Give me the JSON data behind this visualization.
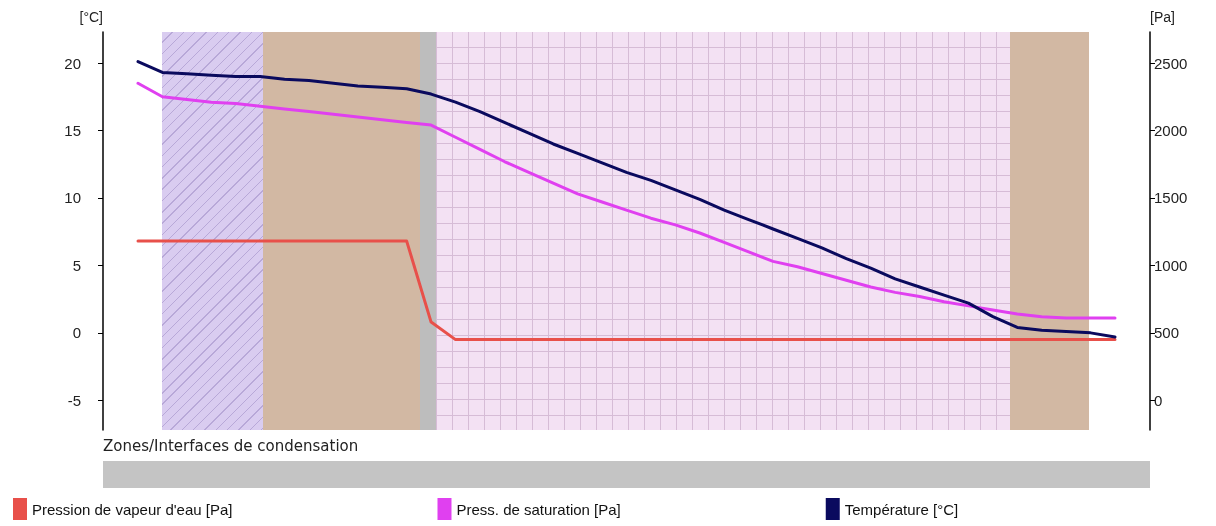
{
  "chart_data": {
    "type": "line",
    "ylabel": "[°C]",
    "y2label": "[Pa]",
    "categories": [
      null,
      null,
      null,
      null,
      null,
      null,
      null,
      null,
      null,
      null,
      null,
      null,
      null,
      null,
      null,
      null,
      null,
      null,
      null,
      null,
      null,
      null,
      null,
      null,
      null,
      null,
      null,
      null,
      null,
      null,
      null,
      null,
      null,
      null,
      null,
      null,
      null,
      null,
      null,
      null,
      null
    ],
    "ylim": [
      -7.2,
      22.3
    ],
    "yticks": [
      -5,
      0,
      5,
      10,
      15,
      20
    ],
    "y2lim": [
      -220,
      2730
    ],
    "y2ticks": [
      0,
      500,
      1000,
      1500,
      2000,
      2500
    ],
    "tick_labels": "y",
    "grid": false,
    "legend": "bottom",
    "marker": "none",
    "annotations": [
      "Zones/Interfaces de condensation"
    ],
    "series": [
      {
        "name": "Pression de vapeur d'eau [Pa]",
        "color": "#e8504a",
        "axis": "y2",
        "values": [
          1180,
          1180,
          1180,
          1180,
          1180,
          1180,
          1180,
          1180,
          1180,
          1180,
          1180,
          1180,
          580,
          450,
          450,
          450,
          450,
          450,
          450,
          450,
          450,
          450,
          450,
          450,
          450,
          450,
          450,
          450,
          450,
          450,
          450,
          450,
          450,
          450,
          450,
          450,
          450,
          450,
          450,
          450,
          450
        ]
      },
      {
        "name": "Press. de saturation [Pa]",
        "color": "#e040f0",
        "axis": "y2",
        "values": [
          2350,
          2250,
          2230,
          2210,
          2200,
          2180,
          2160,
          2140,
          2120,
          2100,
          2080,
          2060,
          2040,
          1950,
          1860,
          1770,
          1690,
          1610,
          1530,
          1470,
          1410,
          1350,
          1300,
          1240,
          1170,
          1100,
          1030,
          990,
          940,
          890,
          840,
          800,
          770,
          730,
          700,
          670,
          640,
          620,
          610,
          610,
          610
        ]
      },
      {
        "name": "Température [°C]",
        "color": "#0a0a5e",
        "axis": "y",
        "values": [
          20.1,
          19.3,
          19.2,
          19.1,
          19.0,
          19.0,
          18.8,
          18.7,
          18.5,
          18.3,
          18.2,
          18.1,
          17.7,
          17.1,
          16.4,
          15.6,
          14.8,
          14.0,
          13.3,
          12.6,
          11.9,
          11.3,
          10.6,
          9.9,
          9.1,
          8.4,
          7.7,
          7.0,
          6.3,
          5.5,
          4.8,
          4.0,
          3.4,
          2.8,
          2.2,
          1.2,
          0.4,
          0.2,
          0.1,
          0.0,
          -0.3
        ]
      }
    ]
  }
}
